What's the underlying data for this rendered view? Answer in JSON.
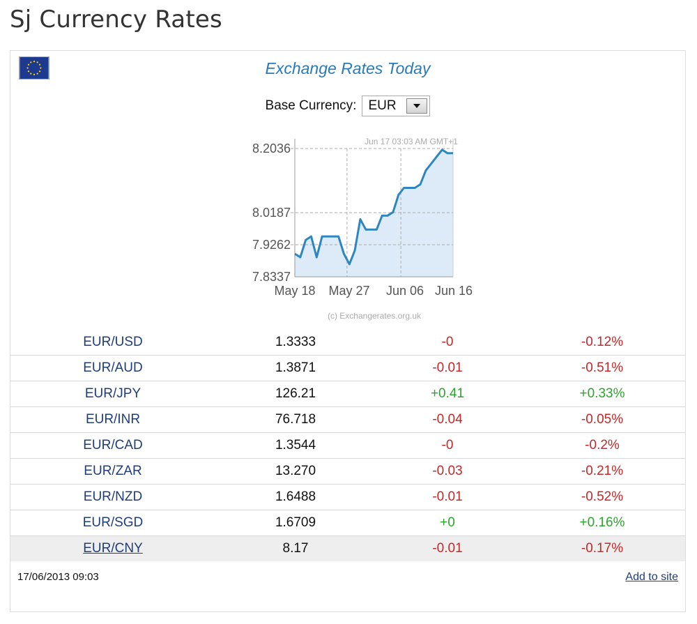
{
  "page": {
    "title": "Sj Currency Rates"
  },
  "widget": {
    "title": "Exchange Rates Today",
    "base_label": "Base Currency:",
    "base_value": "EUR",
    "flag_icon": "eu-flag-icon"
  },
  "chart_data": {
    "type": "area",
    "subtitle": "Jun 17 03:03 AM GMT+1",
    "credit": "(c) Exchangerates.org.uk",
    "yticks": [
      "8.2036",
      "8.0187",
      "7.9262",
      "7.8337"
    ],
    "xticks": [
      "May 18",
      "May 27",
      "Jun 06",
      "Jun 16"
    ],
    "ylim": [
      7.8337,
      8.2036
    ],
    "grid": true,
    "series": [
      {
        "values": [
          7.9,
          7.89,
          7.94,
          7.95,
          7.89,
          7.95,
          7.95,
          7.95,
          7.95,
          7.9,
          7.87,
          7.91,
          8.0,
          7.97,
          7.97,
          7.97,
          8.01,
          8.01,
          8.02,
          8.07,
          8.09,
          8.09,
          8.09,
          8.1,
          8.14,
          8.16,
          8.18,
          8.2,
          8.19,
          8.19
        ]
      }
    ],
    "line_color": "#2e86c1",
    "fill_color": "#dcebf7"
  },
  "rates": [
    {
      "pair": "EUR/USD",
      "rate": "1.3333",
      "change": "-0",
      "percent": "-0.12%",
      "dir": "neg"
    },
    {
      "pair": "EUR/AUD",
      "rate": "1.3871",
      "change": "-0.01",
      "percent": "-0.51%",
      "dir": "neg"
    },
    {
      "pair": "EUR/JPY",
      "rate": "126.21",
      "change": "+0.41",
      "percent": "+0.33%",
      "dir": "pos"
    },
    {
      "pair": "EUR/INR",
      "rate": "76.718",
      "change": "-0.04",
      "percent": "-0.05%",
      "dir": "neg"
    },
    {
      "pair": "EUR/CAD",
      "rate": "1.3544",
      "change": "-0",
      "percent": "-0.2%",
      "dir": "neg"
    },
    {
      "pair": "EUR/ZAR",
      "rate": "13.270",
      "change": "-0.03",
      "percent": "-0.21%",
      "dir": "neg"
    },
    {
      "pair": "EUR/NZD",
      "rate": "1.6488",
      "change": "-0.01",
      "percent": "-0.52%",
      "dir": "neg"
    },
    {
      "pair": "EUR/SGD",
      "rate": "1.6709",
      "change": "+0",
      "percent": "+0.16%",
      "dir": "pos"
    },
    {
      "pair": "EUR/CNY",
      "rate": "8.17",
      "change": "-0.01",
      "percent": "-0.17%",
      "dir": "neg"
    }
  ],
  "colors": {
    "negative": "#c42828",
    "positive": "#2aa52a",
    "link": "#1e3d7a",
    "title": "#2a7ab8"
  },
  "footer": {
    "timestamp": "17/06/2013 09:03",
    "add_link": "Add to site"
  }
}
